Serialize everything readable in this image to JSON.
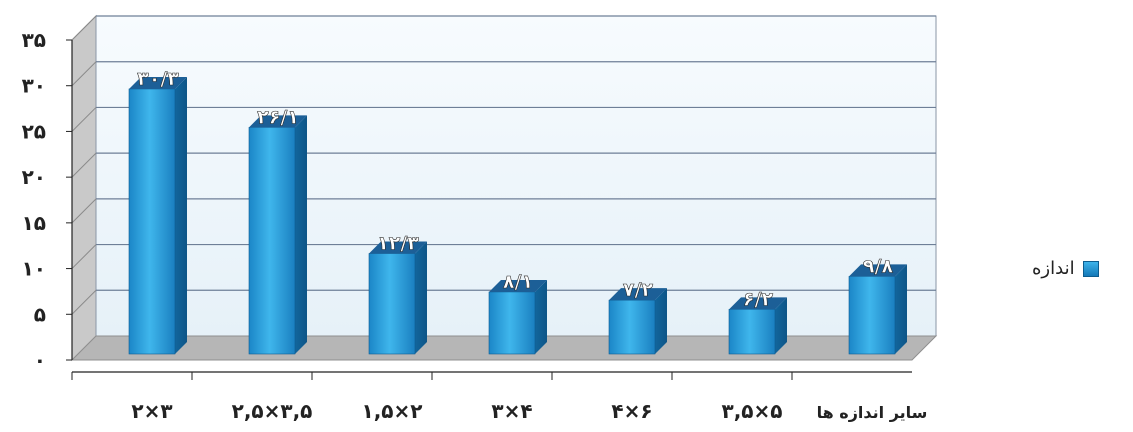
{
  "chart_data": {
    "type": "bar",
    "categories": [
      "۲×۳",
      "۲,۵×۳,۵",
      "۱,۵×۲",
      "۳×۴",
      "۴×۶",
      "۳,۵×۵",
      "سایر اندازه ها"
    ],
    "series": [
      {
        "name": "اندازه",
        "values": [
          30.3,
          26.1,
          12.3,
          8.1,
          7.2,
          6.2,
          9.8
        ],
        "labels": [
          "۳۰/۳",
          "۲۶/۱",
          "۱۲/۳",
          "۸/۱",
          "۷/۲",
          "۶/۲",
          "۹/۸"
        ]
      }
    ],
    "yticks": [
      "۰",
      "۵",
      "۱۰",
      "۱۵",
      "۲۰",
      "۲۵",
      "۳۰",
      "۳۵"
    ],
    "ylim": [
      0,
      35
    ],
    "grid": true,
    "legend_position": "right",
    "colors": {
      "bar_light": "#3db3ea",
      "bar_dark": "#1479b8",
      "bar_top": "#1d5f96",
      "wall": "#f0f6fb",
      "side_wall": "#c7c7c7",
      "floor": "#b3b3b3",
      "grid": "#6e7f97"
    }
  }
}
